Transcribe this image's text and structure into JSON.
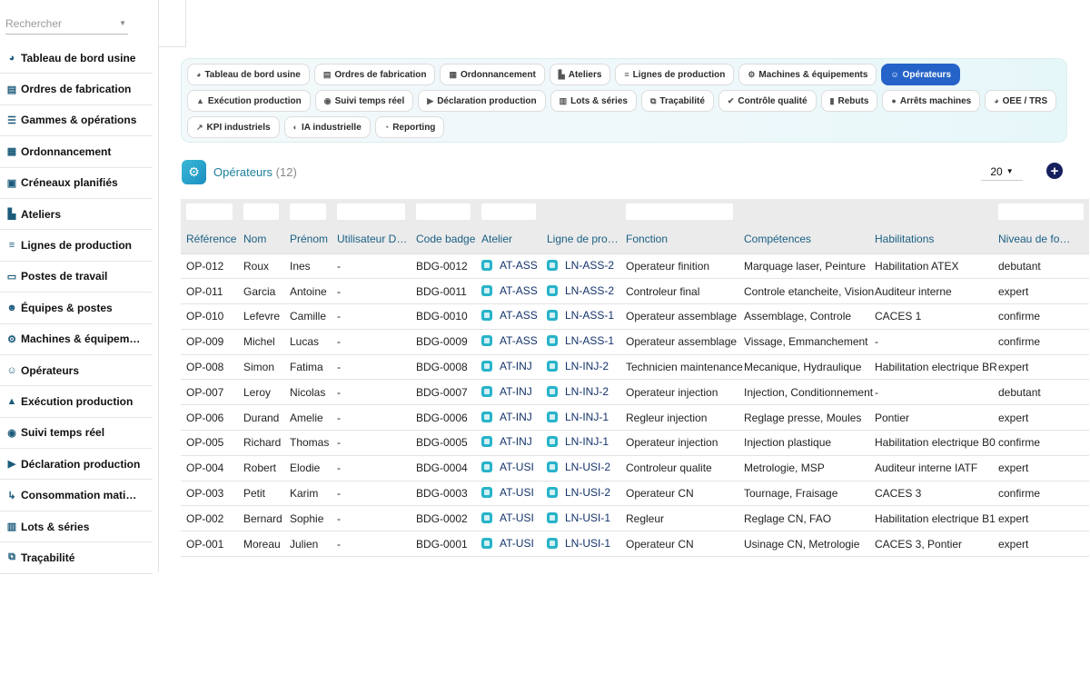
{
  "search": {
    "placeholder": "Rechercher"
  },
  "sidebar": {
    "items": [
      {
        "label": "Tableau de bord usine",
        "icon": "gauge-icon",
        "glyph": "◕"
      },
      {
        "label": "Ordres de fabrication",
        "icon": "clipboard-icon",
        "glyph": "▤"
      },
      {
        "label": "Gammes & opérations",
        "icon": "list-icon",
        "glyph": "☰"
      },
      {
        "label": "Ordonnancement",
        "icon": "calendar-icon",
        "glyph": "▦"
      },
      {
        "label": "Créneaux planifiés",
        "icon": "calendar-check-icon",
        "glyph": "▣"
      },
      {
        "label": "Ateliers",
        "icon": "industry-icon",
        "glyph": "▙"
      },
      {
        "label": "Lignes de production",
        "icon": "bars-icon",
        "glyph": "≡"
      },
      {
        "label": "Postes de travail",
        "icon": "desktop-icon",
        "glyph": "▭"
      },
      {
        "label": "Équipes & postes",
        "icon": "users-gear-icon",
        "glyph": "☻"
      },
      {
        "label": "Machines & équipem…",
        "icon": "gears-icon",
        "glyph": "⚙"
      },
      {
        "label": "Opérateurs",
        "icon": "users-icon",
        "glyph": "☺"
      },
      {
        "label": "Exécution production",
        "icon": "factory-icon",
        "glyph": "▲"
      },
      {
        "label": "Suivi temps réel",
        "icon": "broadcast-icon",
        "glyph": "◉"
      },
      {
        "label": "Déclaration production",
        "icon": "play-circle-icon",
        "glyph": "▶"
      },
      {
        "label": "Consommation mati…",
        "icon": "dolly-icon",
        "glyph": "↳"
      },
      {
        "label": "Lots & séries",
        "icon": "barcode-icon",
        "glyph": "▥"
      },
      {
        "label": "Traçabilité",
        "icon": "sitemap-icon",
        "glyph": "⧉"
      }
    ]
  },
  "menu": {
    "items": [
      {
        "label": "Tableau de bord usine",
        "icon": "gauge-icon",
        "glyph": "◕",
        "active": false
      },
      {
        "label": "Ordres de fabrication",
        "icon": "clipboard-icon",
        "glyph": "▤",
        "active": false
      },
      {
        "label": "Ordonnancement",
        "icon": "calendar-icon",
        "glyph": "▦",
        "active": false
      },
      {
        "label": "Ateliers",
        "icon": "industry-icon",
        "glyph": "▙",
        "active": false
      },
      {
        "label": "Lignes de production",
        "icon": "bars-icon",
        "glyph": "≡",
        "active": false
      },
      {
        "label": "Machines & équipements",
        "icon": "gears-icon",
        "glyph": "⚙",
        "active": false
      },
      {
        "label": "Opérateurs",
        "icon": "users-icon",
        "glyph": "☺",
        "active": true
      },
      {
        "label": "Exécution production",
        "icon": "factory-icon",
        "glyph": "▲",
        "active": false
      },
      {
        "label": "Suivi temps réel",
        "icon": "broadcast-icon",
        "glyph": "◉",
        "active": false
      },
      {
        "label": "Déclaration production",
        "icon": "play-circle-icon",
        "glyph": "▶",
        "active": false
      },
      {
        "label": "Lots & séries",
        "icon": "barcode-icon",
        "glyph": "▥",
        "active": false
      },
      {
        "label": "Traçabilité",
        "icon": "sitemap-icon",
        "glyph": "⧉",
        "active": false
      },
      {
        "label": "Contrôle qualité",
        "icon": "check-double-icon",
        "glyph": "✔",
        "active": false
      },
      {
        "label": "Rebuts",
        "icon": "trash-icon",
        "glyph": "▮",
        "active": false
      },
      {
        "label": "Arrêts machines",
        "icon": "stop-circle-icon",
        "glyph": "●",
        "active": false
      },
      {
        "label": "OEE / TRS",
        "icon": "gauge-icon",
        "glyph": "◕",
        "active": false
      },
      {
        "label": "KPI industriels",
        "icon": "chart-line-icon",
        "glyph": "↗",
        "active": false
      },
      {
        "label": "IA industrielle",
        "icon": "brain-icon",
        "glyph": "◐",
        "active": false
      },
      {
        "label": "Reporting",
        "icon": "chart-pie-icon",
        "glyph": "◔",
        "active": false
      }
    ]
  },
  "page": {
    "title": "Opérateurs",
    "count": "(12)",
    "per_page": "20"
  },
  "table": {
    "columns": [
      "Référence",
      "Nom",
      "Prénom",
      "Utilisateur D…",
      "Code badge",
      "Atelier",
      "Ligne de pro…",
      "Fonction",
      "Compétences",
      "Habilitations",
      "Niveau de fo…"
    ],
    "rows": [
      [
        "OP-012",
        "Roux",
        "Ines",
        "-",
        "BDG-0012",
        "AT-ASS",
        "LN-ASS-2",
        "Operateur finition",
        "Marquage laser, Peinture",
        "Habilitation ATEX",
        "debutant"
      ],
      [
        "OP-011",
        "Garcia",
        "Antoine",
        "-",
        "BDG-0011",
        "AT-ASS",
        "LN-ASS-2",
        "Controleur final",
        "Controle etancheite, Vision",
        "Auditeur interne",
        "expert"
      ],
      [
        "OP-010",
        "Lefevre",
        "Camille",
        "-",
        "BDG-0010",
        "AT-ASS",
        "LN-ASS-1",
        "Operateur assemblage",
        "Assemblage, Controle",
        "CACES 1",
        "confirme"
      ],
      [
        "OP-009",
        "Michel",
        "Lucas",
        "-",
        "BDG-0009",
        "AT-ASS",
        "LN-ASS-1",
        "Operateur assemblage",
        "Vissage, Emmanchement",
        "-",
        "confirme"
      ],
      [
        "OP-008",
        "Simon",
        "Fatima",
        "-",
        "BDG-0008",
        "AT-INJ",
        "LN-INJ-2",
        "Technicien maintenance",
        "Mecanique, Hydraulique",
        "Habilitation electrique BR",
        "expert"
      ],
      [
        "OP-007",
        "Leroy",
        "Nicolas",
        "-",
        "BDG-0007",
        "AT-INJ",
        "LN-INJ-2",
        "Operateur injection",
        "Injection, Conditionnement",
        "-",
        "debutant"
      ],
      [
        "OP-006",
        "Durand",
        "Amelie",
        "-",
        "BDG-0006",
        "AT-INJ",
        "LN-INJ-1",
        "Regleur injection",
        "Reglage presse, Moules",
        "Pontier",
        "expert"
      ],
      [
        "OP-005",
        "Richard",
        "Thomas",
        "-",
        "BDG-0005",
        "AT-INJ",
        "LN-INJ-1",
        "Operateur injection",
        "Injection plastique",
        "Habilitation electrique B0",
        "confirme"
      ],
      [
        "OP-004",
        "Robert",
        "Elodie",
        "-",
        "BDG-0004",
        "AT-USI",
        "LN-USI-2",
        "Controleur qualite",
        "Metrologie, MSP",
        "Auditeur interne IATF",
        "expert"
      ],
      [
        "OP-003",
        "Petit",
        "Karim",
        "-",
        "BDG-0003",
        "AT-USI",
        "LN-USI-2",
        "Operateur CN",
        "Tournage, Fraisage",
        "CACES 3",
        "confirme"
      ],
      [
        "OP-002",
        "Bernard",
        "Sophie",
        "-",
        "BDG-0002",
        "AT-USI",
        "LN-USI-1",
        "Regleur",
        "Reglage CN, FAO",
        "Habilitation electrique B1",
        "expert"
      ],
      [
        "OP-001",
        "Moreau",
        "Julien",
        "-",
        "BDG-0001",
        "AT-USI",
        "LN-USI-1",
        "Operateur CN",
        "Usinage CN, Metrologie",
        "CACES 3, Pontier",
        "expert"
      ]
    ]
  }
}
